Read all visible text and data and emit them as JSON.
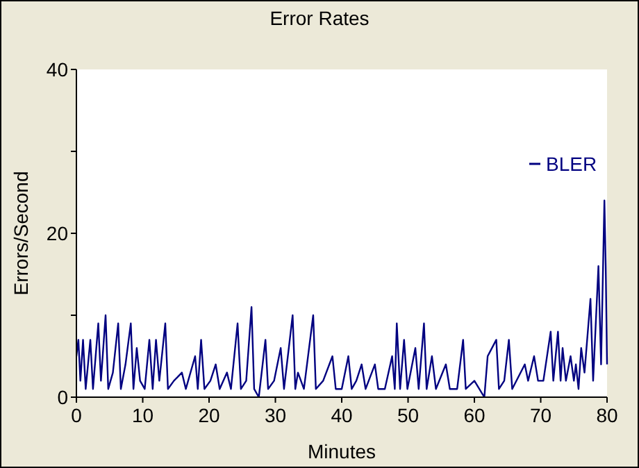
{
  "chart_data": {
    "type": "line",
    "title": "Error Rates",
    "xlabel": "Minutes",
    "ylabel": "Errors/Second",
    "xlim": [
      0,
      80
    ],
    "xticks": [
      0,
      10,
      20,
      30,
      40,
      50,
      60,
      70,
      80
    ],
    "ylim": [
      0,
      40
    ],
    "yticks": [
      0,
      {
        "value": 10,
        "label": null
      },
      20,
      {
        "value": 30,
        "label": null
      },
      40
    ],
    "grid": false,
    "legend": "top right",
    "marker": "none",
    "line_style": "solid",
    "series": [
      {
        "name": "BLER",
        "color": "#000080",
        "x": [
          0,
          0.3,
          0.6,
          1,
          1.4,
          2.1,
          2.5,
          3.3,
          3.7,
          4.4,
          4.8,
          5.5,
          6.3,
          6.7,
          7.4,
          8.2,
          8.6,
          9.1,
          9.6,
          10.3,
          11,
          11.5,
          12,
          12.5,
          13.4,
          13.8,
          14.7,
          15.9,
          16.5,
          17.9,
          18.3,
          18.8,
          19.3,
          20.2,
          21,
          21.6,
          22.7,
          23.3,
          24.3,
          24.8,
          25.6,
          26.4,
          26.8,
          27.5,
          28.5,
          28.9,
          29.8,
          30.8,
          31.3,
          32.6,
          33,
          33.4,
          34.3,
          35.7,
          36.1,
          37.2,
          38.6,
          39.1,
          40,
          41,
          41.5,
          42.2,
          43,
          43.6,
          45,
          45.5,
          46.5,
          47.6,
          48,
          48.3,
          48.8,
          49.4,
          49.9,
          51.1,
          51.6,
          52.4,
          52.8,
          53.6,
          54.2,
          55.7,
          56.3,
          57.4,
          58.3,
          58.7,
          60,
          61.5,
          62,
          63.3,
          63.7,
          64.5,
          65.2,
          65.7,
          67.6,
          68.1,
          69,
          69.6,
          70.4,
          71.5,
          71.9,
          72.6,
          73,
          73.3,
          73.8,
          74.5,
          75,
          75.3,
          75.7,
          76.1,
          76.6,
          77.5,
          77.9,
          78.3,
          78.7,
          79.1,
          79.6,
          79.8,
          80
        ],
        "values": [
          5,
          7,
          2,
          7,
          1,
          7,
          1,
          9,
          2,
          10,
          1,
          3,
          9,
          1,
          4,
          9,
          1,
          6,
          2,
          1,
          7,
          1,
          7,
          2,
          9,
          1,
          2,
          3,
          1,
          5,
          1,
          7,
          1,
          2,
          4,
          1,
          3,
          1,
          9,
          1,
          2,
          11,
          1,
          0,
          7,
          1,
          2,
          6,
          1,
          10,
          1,
          3,
          1,
          10,
          1,
          2,
          5,
          1,
          1,
          5,
          1,
          2,
          4,
          1,
          4,
          1,
          1,
          5,
          1,
          9,
          1,
          7,
          1,
          6,
          1,
          9,
          1,
          5,
          1,
          4,
          1,
          1,
          7,
          1,
          2,
          0,
          5,
          7,
          1,
          2,
          7,
          1,
          4,
          2,
          5,
          2,
          2,
          8,
          2,
          8,
          2,
          6,
          2,
          5,
          2,
          4,
          1,
          6,
          3,
          12,
          2,
          9,
          16,
          4,
          24,
          16,
          4
        ]
      }
    ]
  }
}
